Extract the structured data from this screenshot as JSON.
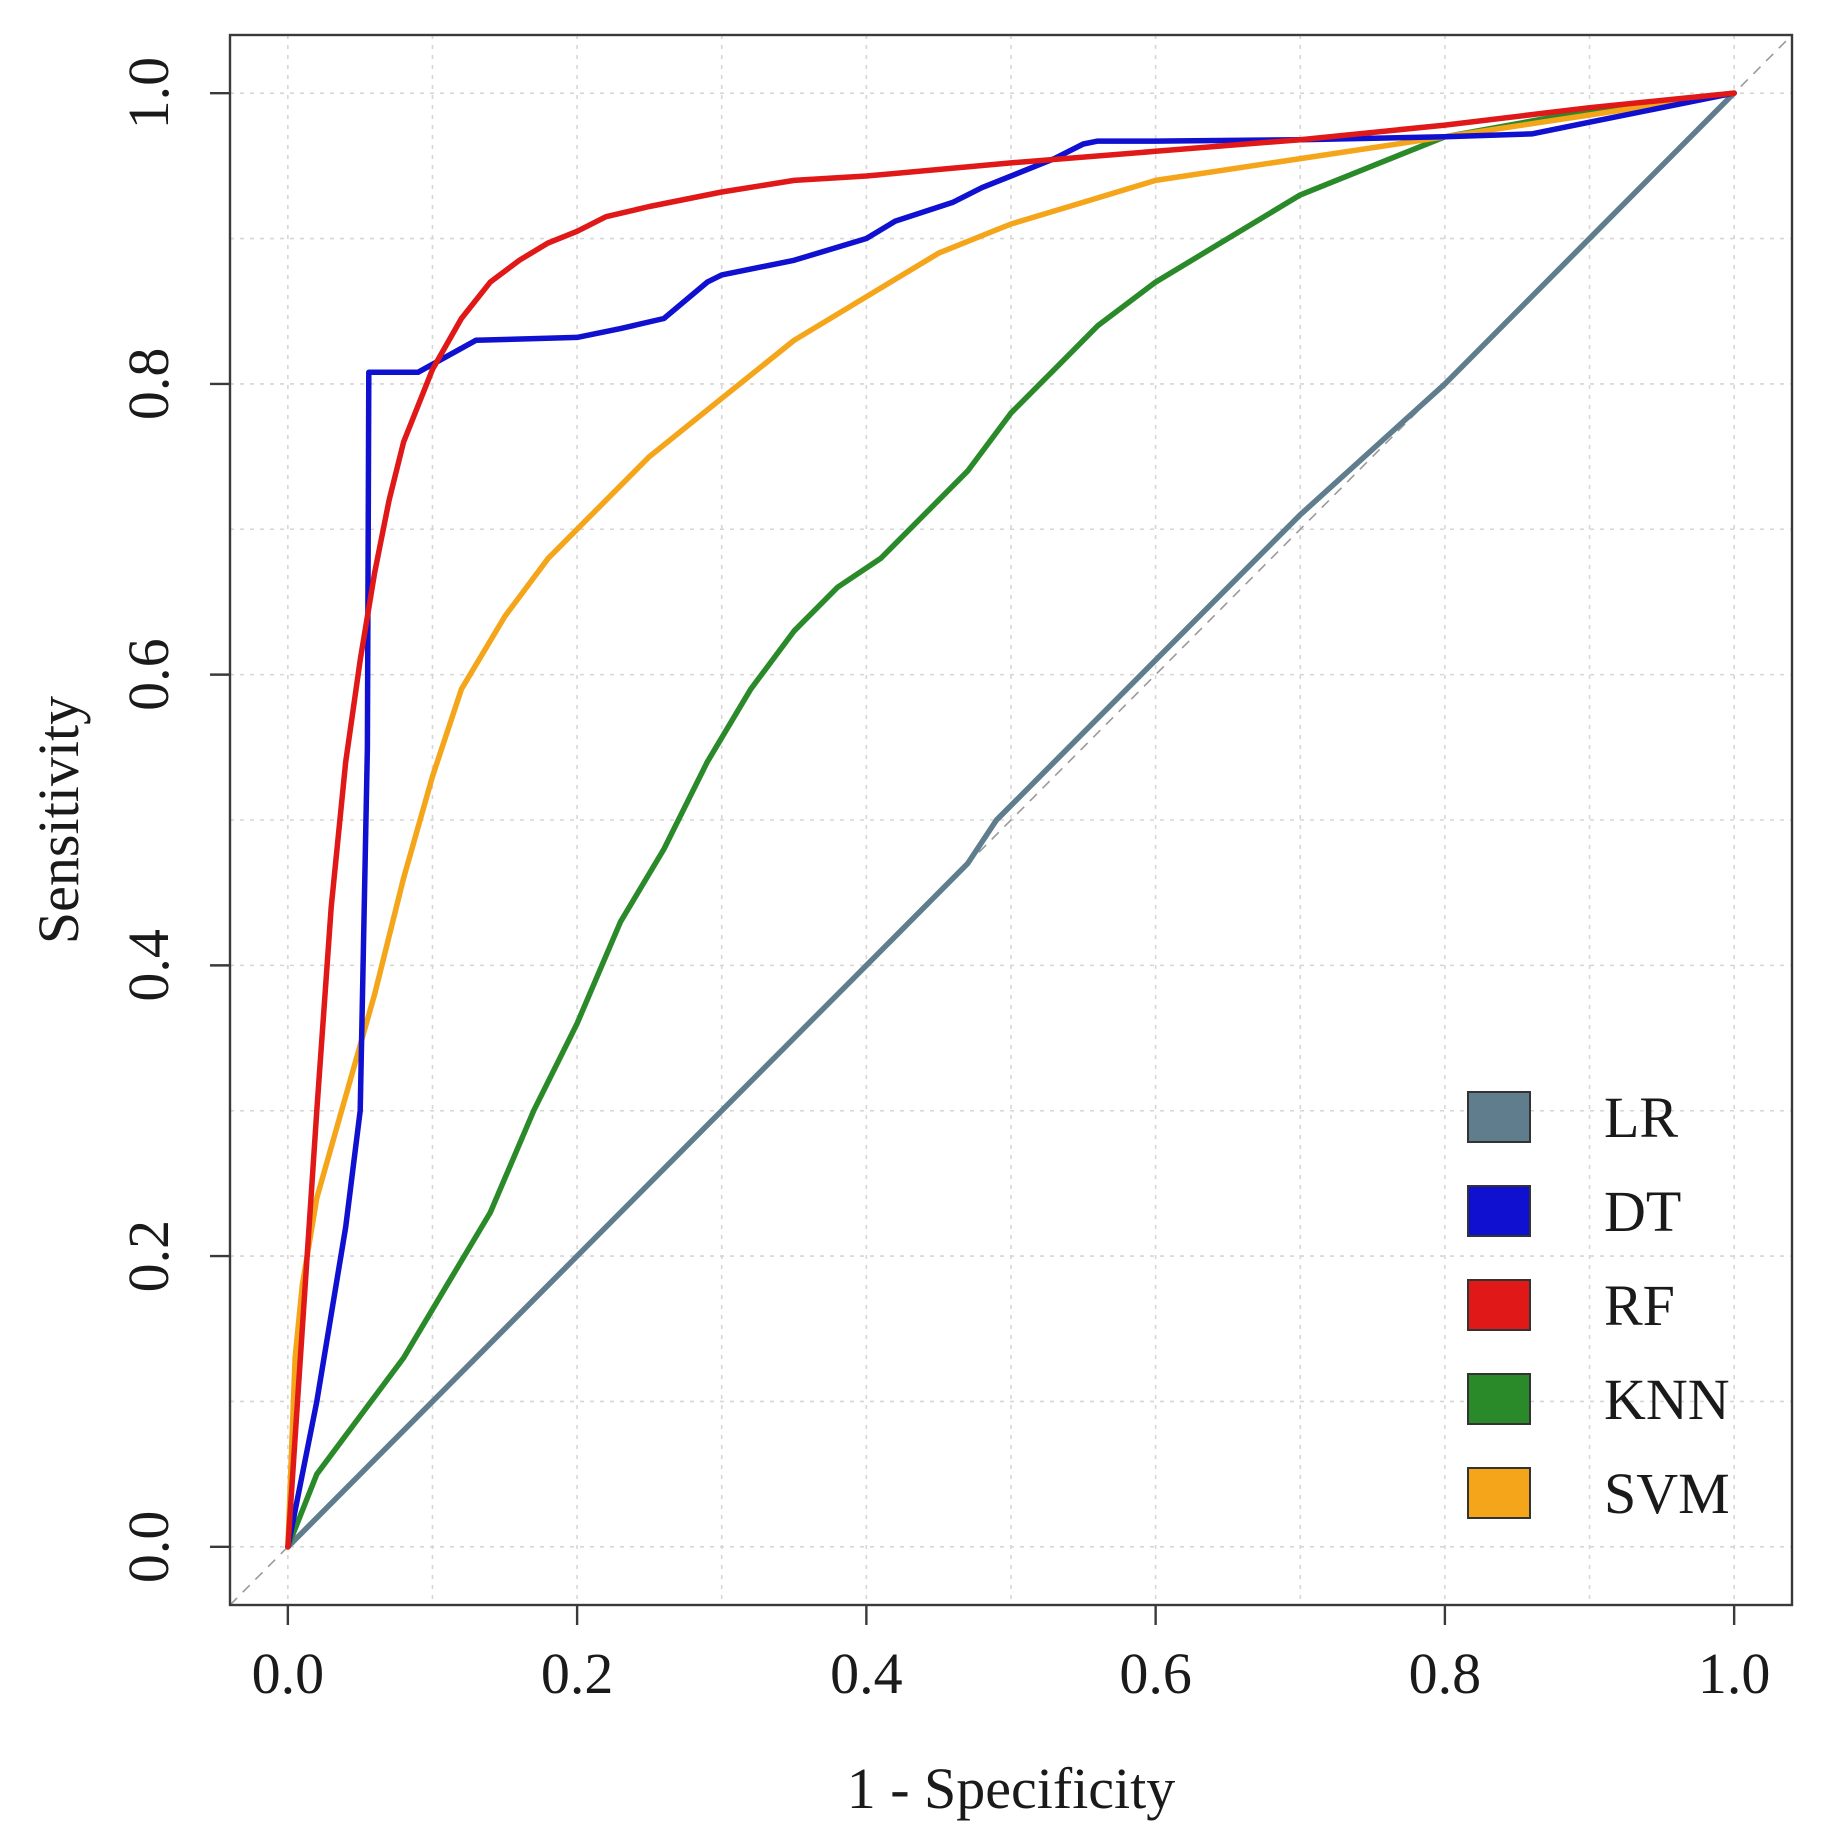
{
  "chart_data": {
    "type": "line",
    "title": "",
    "xlabel": "1 - Specificity",
    "ylabel": "Sensitivity",
    "xlim": [
      -0.04,
      1.04
    ],
    "ylim": [
      -0.04,
      1.04
    ],
    "grid": true,
    "legend_position": "bottom-right",
    "xticks": [
      0.0,
      0.2,
      0.4,
      0.6,
      0.8,
      1.0
    ],
    "yticks": [
      0.0,
      0.2,
      0.4,
      0.6,
      0.8,
      1.0
    ],
    "xtick_labels": [
      "0.0",
      "0.2",
      "0.4",
      "0.6",
      "0.8",
      "1.0"
    ],
    "ytick_labels": [
      "0.0",
      "0.2",
      "0.4",
      "0.6",
      "0.8",
      "1.0"
    ],
    "series": [
      {
        "name": "LR",
        "color": "#5f7d8c",
        "x": [
          0.0,
          0.1,
          0.2,
          0.3,
          0.4,
          0.47,
          0.49,
          0.5,
          0.6,
          0.7,
          0.8,
          0.9,
          1.0
        ],
        "y": [
          0.0,
          0.1,
          0.2,
          0.3,
          0.4,
          0.47,
          0.5,
          0.51,
          0.61,
          0.71,
          0.8,
          0.9,
          1.0
        ]
      },
      {
        "name": "DT",
        "color": "#1010d0",
        "x": [
          0.0,
          0.02,
          0.04,
          0.05,
          0.055,
          0.056,
          0.09,
          0.13,
          0.2,
          0.23,
          0.26,
          0.29,
          0.3,
          0.35,
          0.4,
          0.42,
          0.46,
          0.48,
          0.53,
          0.55,
          0.56,
          0.6,
          0.7,
          0.8,
          0.86,
          0.9,
          1.0
        ],
        "y": [
          0.0,
          0.1,
          0.22,
          0.3,
          0.55,
          0.808,
          0.808,
          0.83,
          0.832,
          0.838,
          0.845,
          0.87,
          0.875,
          0.885,
          0.9,
          0.912,
          0.925,
          0.935,
          0.955,
          0.965,
          0.967,
          0.967,
          0.968,
          0.97,
          0.972,
          0.98,
          1.0
        ]
      },
      {
        "name": "RF",
        "color": "#e01818",
        "x": [
          0.0,
          0.01,
          0.02,
          0.03,
          0.04,
          0.05,
          0.06,
          0.07,
          0.08,
          0.1,
          0.12,
          0.14,
          0.16,
          0.18,
          0.2,
          0.22,
          0.25,
          0.3,
          0.35,
          0.4,
          0.5,
          0.6,
          0.7,
          0.8,
          0.9,
          1.0
        ],
        "y": [
          0.0,
          0.15,
          0.3,
          0.44,
          0.54,
          0.61,
          0.67,
          0.72,
          0.76,
          0.81,
          0.845,
          0.87,
          0.885,
          0.897,
          0.905,
          0.915,
          0.922,
          0.932,
          0.94,
          0.943,
          0.952,
          0.96,
          0.968,
          0.978,
          0.99,
          1.0
        ]
      },
      {
        "name": "KNN",
        "color": "#2a8a2a",
        "x": [
          0.0,
          0.02,
          0.05,
          0.08,
          0.11,
          0.14,
          0.17,
          0.2,
          0.23,
          0.26,
          0.29,
          0.32,
          0.35,
          0.38,
          0.41,
          0.44,
          0.47,
          0.5,
          0.53,
          0.56,
          0.6,
          0.65,
          0.7,
          0.75,
          0.8,
          0.9,
          1.0
        ],
        "y": [
          0.0,
          0.05,
          0.09,
          0.13,
          0.18,
          0.23,
          0.3,
          0.36,
          0.43,
          0.48,
          0.54,
          0.59,
          0.63,
          0.66,
          0.68,
          0.71,
          0.74,
          0.78,
          0.81,
          0.84,
          0.87,
          0.9,
          0.93,
          0.95,
          0.97,
          0.988,
          1.0
        ]
      },
      {
        "name": "SVM",
        "color": "#f5a51a",
        "x": [
          0.0,
          0.005,
          0.01,
          0.02,
          0.04,
          0.06,
          0.08,
          0.1,
          0.12,
          0.15,
          0.18,
          0.21,
          0.25,
          0.3,
          0.35,
          0.4,
          0.45,
          0.5,
          0.55,
          0.6,
          0.7,
          0.8,
          0.9,
          1.0
        ],
        "y": [
          0.0,
          0.13,
          0.18,
          0.24,
          0.31,
          0.38,
          0.46,
          0.53,
          0.59,
          0.64,
          0.68,
          0.71,
          0.75,
          0.79,
          0.83,
          0.86,
          0.89,
          0.91,
          0.925,
          0.94,
          0.955,
          0.97,
          0.985,
          1.0
        ]
      }
    ],
    "reference_line": {
      "x": [
        -0.04,
        1.04
      ],
      "y": [
        -0.04,
        1.04
      ],
      "style": "dashed",
      "color": "#9a9a9a"
    }
  }
}
